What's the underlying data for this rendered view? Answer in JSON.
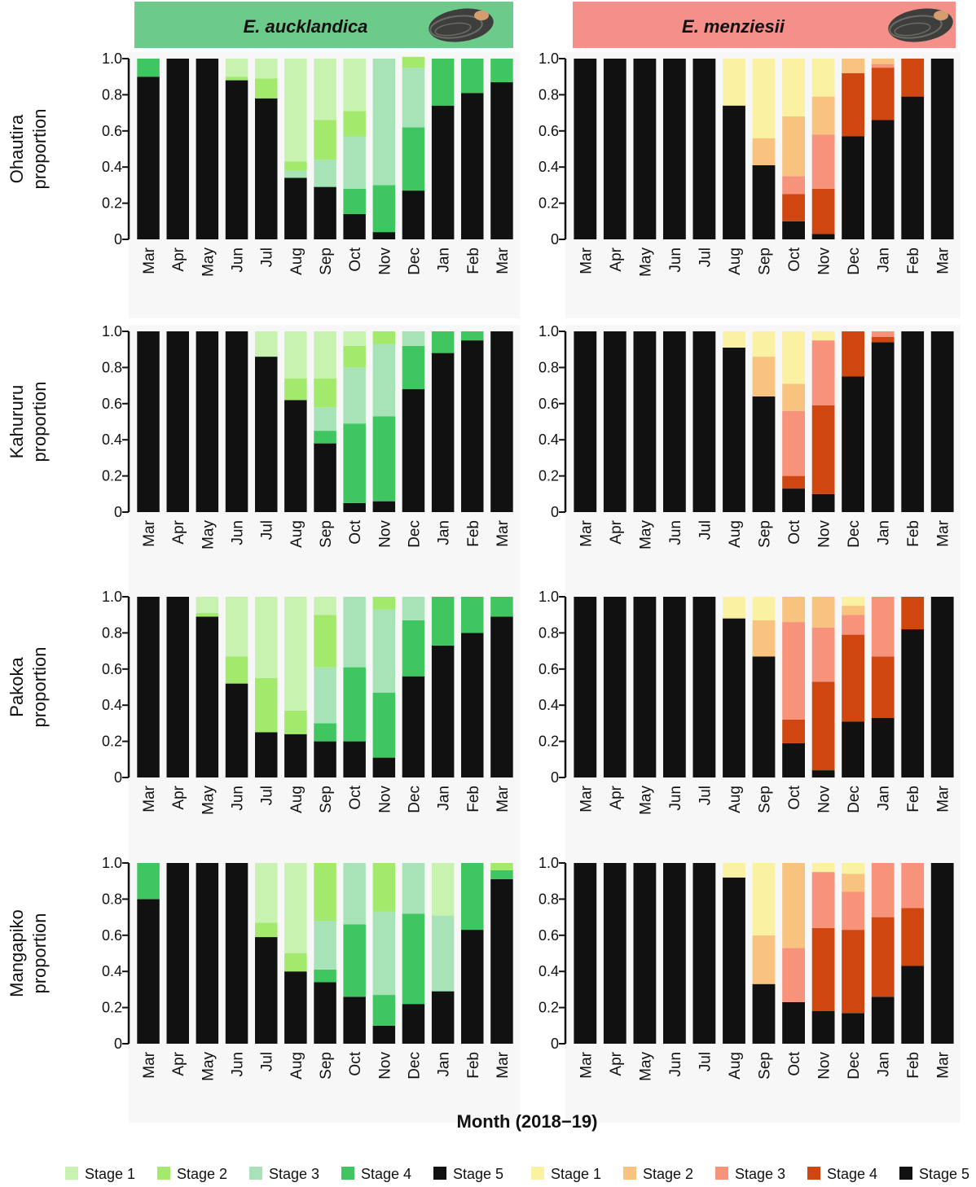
{
  "figure": {
    "species": [
      {
        "name": "E. aucklandica",
        "header_color": "#6ccb8a",
        "header_light": "#d6f1dc"
      },
      {
        "name": "E. menziesii",
        "header_color": "#f48f8a",
        "header_light": "#ffe2df"
      }
    ],
    "x_title": "Month (2018−19)"
  },
  "legend": {
    "aucklandica": [
      {
        "label": "Stage 1",
        "color": "#c8f2b0"
      },
      {
        "label": "Stage 2",
        "color": "#a3ea6c"
      },
      {
        "label": "Stage 3",
        "color": "#a8e3b8"
      },
      {
        "label": "Stage 4",
        "color": "#3fc660"
      },
      {
        "label": "Stage 5",
        "color": "#111111"
      }
    ],
    "menziesii": [
      {
        "label": "Stage 1",
        "color": "#fbf1a3"
      },
      {
        "label": "Stage 2",
        "color": "#f8c27f"
      },
      {
        "label": "Stage 3",
        "color": "#f7937a"
      },
      {
        "label": "Stage 4",
        "color": "#cf4610"
      },
      {
        "label": "Stage 5",
        "color": "#111111"
      }
    ]
  },
  "chart_data": [
    {
      "type": "bar",
      "stacked": true,
      "species": "E. aucklandica",
      "site": "Ohautira",
      "ylabel": "proportion",
      "categories": [
        "Mar",
        "Apr",
        "May",
        "Jun",
        "Jul",
        "Aug",
        "Sep",
        "Oct",
        "Nov",
        "Dec",
        "Jan",
        "Feb",
        "Mar"
      ],
      "yticks": [
        "0",
        "0.2",
        "0.4",
        "0.6",
        "0.8",
        "1.0"
      ],
      "ylim": [
        0,
        1
      ],
      "series": [
        {
          "name": "Stage 5",
          "values": [
            0.9,
            1.0,
            1.0,
            0.88,
            0.78,
            0.34,
            0.29,
            0.14,
            0.04,
            0.27,
            0.74,
            0.81,
            0.87
          ]
        },
        {
          "name": "Stage 4",
          "values": [
            0.1,
            0,
            0,
            0,
            0,
            0,
            0,
            0.14,
            0.26,
            0.35,
            0.26,
            0.19,
            0.13
          ]
        },
        {
          "name": "Stage 3",
          "values": [
            0,
            0,
            0,
            0,
            0,
            0.04,
            0.15,
            0.29,
            0.7,
            0.33,
            0,
            0,
            0
          ]
        },
        {
          "name": "Stage 2",
          "values": [
            0,
            0,
            0,
            0.02,
            0.11,
            0.05,
            0.22,
            0.14,
            0,
            0.06,
            0,
            0,
            0
          ]
        },
        {
          "name": "Stage 1",
          "values": [
            0,
            0,
            0,
            0.1,
            0.11,
            0.57,
            0.34,
            0.29,
            0,
            0,
            0,
            0,
            0
          ]
        }
      ]
    },
    {
      "type": "bar",
      "stacked": true,
      "species": "E. menziesii",
      "site": "Ohautira",
      "ylabel": "proportion",
      "categories": [
        "Mar",
        "Apr",
        "May",
        "Jun",
        "Jul",
        "Aug",
        "Sep",
        "Oct",
        "Nov",
        "Dec",
        "Jan",
        "Feb",
        "Mar"
      ],
      "yticks": [
        "0",
        "0.2",
        "0.4",
        "0.6",
        "0.8",
        "1.0"
      ],
      "ylim": [
        0,
        1
      ],
      "series": [
        {
          "name": "Stage 5",
          "values": [
            1.0,
            1.0,
            1.0,
            1.0,
            1.0,
            0.74,
            0.41,
            0.1,
            0.03,
            0.57,
            0.66,
            0.79,
            1.0
          ]
        },
        {
          "name": "Stage 4",
          "values": [
            0,
            0,
            0,
            0,
            0,
            0,
            0,
            0.15,
            0.25,
            0.35,
            0.29,
            0.21,
            0
          ]
        },
        {
          "name": "Stage 3",
          "values": [
            0,
            0,
            0,
            0,
            0,
            0,
            0,
            0.1,
            0.3,
            0,
            0.02,
            0,
            0
          ]
        },
        {
          "name": "Stage 2",
          "values": [
            0,
            0,
            0,
            0,
            0,
            0,
            0.15,
            0.33,
            0.21,
            0.08,
            0.03,
            0,
            0
          ]
        },
        {
          "name": "Stage 1",
          "values": [
            0,
            0,
            0,
            0,
            0,
            0.26,
            0.44,
            0.32,
            0.21,
            0,
            0,
            0,
            0
          ]
        }
      ]
    },
    {
      "type": "bar",
      "stacked": true,
      "species": "E. aucklandica",
      "site": "Kahururu",
      "ylabel": "proportion",
      "categories": [
        "Mar",
        "Apr",
        "May",
        "Jun",
        "Jul",
        "Aug",
        "Sep",
        "Oct",
        "Nov",
        "Dec",
        "Jan",
        "Feb",
        "Mar"
      ],
      "yticks": [
        "0",
        "0.2",
        "0.4",
        "0.6",
        "0.8",
        "1.0"
      ],
      "ylim": [
        0,
        1
      ],
      "series": [
        {
          "name": "Stage 5",
          "values": [
            1.0,
            1.0,
            1.0,
            1.0,
            0.86,
            0.62,
            0.38,
            0.05,
            0.06,
            0.68,
            0.88,
            0.95,
            1.0
          ]
        },
        {
          "name": "Stage 4",
          "values": [
            0,
            0,
            0,
            0,
            0,
            0,
            0.07,
            0.44,
            0.47,
            0.24,
            0.12,
            0.05,
            0
          ]
        },
        {
          "name": "Stage 3",
          "values": [
            0,
            0,
            0,
            0,
            0,
            0,
            0.13,
            0.31,
            0.4,
            0.08,
            0,
            0,
            0
          ]
        },
        {
          "name": "Stage 2",
          "values": [
            0,
            0,
            0,
            0,
            0,
            0.12,
            0.16,
            0.12,
            0.07,
            0,
            0,
            0,
            0
          ]
        },
        {
          "name": "Stage 1",
          "values": [
            0,
            0,
            0,
            0,
            0.14,
            0.26,
            0.26,
            0.08,
            0,
            0,
            0,
            0,
            0
          ]
        }
      ]
    },
    {
      "type": "bar",
      "stacked": true,
      "species": "E. menziesii",
      "site": "Kahururu",
      "ylabel": "proportion",
      "categories": [
        "Mar",
        "Apr",
        "May",
        "Jun",
        "Jul",
        "Aug",
        "Sep",
        "Oct",
        "Nov",
        "Dec",
        "Jan",
        "Feb",
        "Mar"
      ],
      "yticks": [
        "0",
        "0.2",
        "0.4",
        "0.6",
        "0.8",
        "1.0"
      ],
      "ylim": [
        0,
        1
      ],
      "series": [
        {
          "name": "Stage 5",
          "values": [
            1.0,
            1.0,
            1.0,
            1.0,
            1.0,
            0.91,
            0.64,
            0.13,
            0.1,
            0.75,
            0.94,
            1.0,
            1.0
          ]
        },
        {
          "name": "Stage 4",
          "values": [
            0,
            0,
            0,
            0,
            0,
            0,
            0,
            0.07,
            0.49,
            0.25,
            0.03,
            0,
            0
          ]
        },
        {
          "name": "Stage 3",
          "values": [
            0,
            0,
            0,
            0,
            0,
            0,
            0,
            0.36,
            0.36,
            0,
            0.03,
            0,
            0
          ]
        },
        {
          "name": "Stage 2",
          "values": [
            0,
            0,
            0,
            0,
            0,
            0,
            0.22,
            0.15,
            0,
            0,
            0,
            0,
            0
          ]
        },
        {
          "name": "Stage 1",
          "values": [
            0,
            0,
            0,
            0,
            0,
            0.09,
            0.14,
            0.29,
            0.05,
            0,
            0,
            0,
            0
          ]
        }
      ]
    },
    {
      "type": "bar",
      "stacked": true,
      "species": "E. aucklandica",
      "site": "Pakoka",
      "ylabel": "proportion",
      "categories": [
        "Mar",
        "Apr",
        "May",
        "Jun",
        "Jul",
        "Aug",
        "Sep",
        "Oct",
        "Nov",
        "Dec",
        "Jan",
        "Feb",
        "Mar"
      ],
      "yticks": [
        "0",
        "0.2",
        "0.4",
        "0.6",
        "0.8",
        "1.0"
      ],
      "ylim": [
        0,
        1
      ],
      "series": [
        {
          "name": "Stage 5",
          "values": [
            1.0,
            1.0,
            0.89,
            0.52,
            0.25,
            0.24,
            0.2,
            0.2,
            0.11,
            0.56,
            0.73,
            0.8,
            0.89
          ]
        },
        {
          "name": "Stage 4",
          "values": [
            0,
            0,
            0,
            0,
            0,
            0,
            0.1,
            0.41,
            0.36,
            0.31,
            0.27,
            0.2,
            0.11
          ]
        },
        {
          "name": "Stage 3",
          "values": [
            0,
            0,
            0,
            0,
            0,
            0,
            0.31,
            0.39,
            0.46,
            0.13,
            0,
            0,
            0
          ]
        },
        {
          "name": "Stage 2",
          "values": [
            0,
            0,
            0.02,
            0.15,
            0.3,
            0.13,
            0.29,
            0,
            0.07,
            0,
            0,
            0,
            0
          ]
        },
        {
          "name": "Stage 1",
          "values": [
            0,
            0,
            0.09,
            0.33,
            0.45,
            0.63,
            0.1,
            0,
            0,
            0,
            0,
            0,
            0
          ]
        }
      ]
    },
    {
      "type": "bar",
      "stacked": true,
      "species": "E. menziesii",
      "site": "Pakoka",
      "ylabel": "proportion",
      "categories": [
        "Mar",
        "Apr",
        "May",
        "Jun",
        "Jul",
        "Aug",
        "Sep",
        "Oct",
        "Nov",
        "Dec",
        "Jan",
        "Feb",
        "Mar"
      ],
      "yticks": [
        "0",
        "0.2",
        "0.4",
        "0.6",
        "0.8",
        "1.0"
      ],
      "ylim": [
        0,
        1
      ],
      "series": [
        {
          "name": "Stage 5",
          "values": [
            1.0,
            1.0,
            1.0,
            1.0,
            1.0,
            0.88,
            0.67,
            0.19,
            0.04,
            0.31,
            0.33,
            0.82,
            1.0
          ]
        },
        {
          "name": "Stage 4",
          "values": [
            0,
            0,
            0,
            0,
            0,
            0,
            0,
            0.13,
            0.49,
            0.48,
            0.34,
            0.18,
            0
          ]
        },
        {
          "name": "Stage 3",
          "values": [
            0,
            0,
            0,
            0,
            0,
            0,
            0,
            0.54,
            0.3,
            0.11,
            0.33,
            0,
            0
          ]
        },
        {
          "name": "Stage 2",
          "values": [
            0,
            0,
            0,
            0,
            0,
            0,
            0.2,
            0.14,
            0.17,
            0.05,
            0,
            0,
            0
          ]
        },
        {
          "name": "Stage 1",
          "values": [
            0,
            0,
            0,
            0,
            0,
            0.12,
            0.13,
            0,
            0,
            0.05,
            0,
            0,
            0
          ]
        }
      ]
    },
    {
      "type": "bar",
      "stacked": true,
      "species": "E. aucklandica",
      "site": "Mangapiko",
      "ylabel": "proportion",
      "categories": [
        "Mar",
        "Apr",
        "May",
        "Jun",
        "Jul",
        "Aug",
        "Sep",
        "Oct",
        "Nov",
        "Dec",
        "Jan",
        "Feb",
        "Mar"
      ],
      "yticks": [
        "0",
        "0.2",
        "0.4",
        "0.6",
        "0.8",
        "1.0"
      ],
      "ylim": [
        0,
        1
      ],
      "series": [
        {
          "name": "Stage 5",
          "values": [
            0.8,
            1.0,
            1.0,
            1.0,
            0.59,
            0.4,
            0.34,
            0.26,
            0.1,
            0.22,
            0.29,
            0.63,
            0.91
          ]
        },
        {
          "name": "Stage 4",
          "values": [
            0.2,
            0,
            0,
            0,
            0,
            0,
            0.07,
            0.4,
            0.17,
            0.5,
            0,
            0.37,
            0.05
          ]
        },
        {
          "name": "Stage 3",
          "values": [
            0,
            0,
            0,
            0,
            0,
            0,
            0.27,
            0.34,
            0.46,
            0.28,
            0.42,
            0,
            0
          ]
        },
        {
          "name": "Stage 2",
          "values": [
            0,
            0,
            0,
            0,
            0.08,
            0.1,
            0.32,
            0,
            0.27,
            0,
            0,
            0,
            0.04
          ]
        },
        {
          "name": "Stage 1",
          "values": [
            0,
            0,
            0,
            0,
            0.33,
            0.5,
            0,
            0,
            0,
            0,
            0.29,
            0,
            0
          ]
        }
      ]
    },
    {
      "type": "bar",
      "stacked": true,
      "species": "E. menziesii",
      "site": "Mangapiko",
      "ylabel": "proportion",
      "categories": [
        "Mar",
        "Apr",
        "May",
        "Jun",
        "Jul",
        "Aug",
        "Sep",
        "Oct",
        "Nov",
        "Dec",
        "Jan",
        "Feb",
        "Mar"
      ],
      "yticks": [
        "0",
        "0.2",
        "0.4",
        "0.6",
        "0.8",
        "1.0"
      ],
      "ylim": [
        0,
        1
      ],
      "series": [
        {
          "name": "Stage 5",
          "values": [
            1.0,
            1.0,
            1.0,
            1.0,
            1.0,
            0.92,
            0.33,
            0.23,
            0.18,
            0.17,
            0.26,
            0.43,
            1.0
          ]
        },
        {
          "name": "Stage 4",
          "values": [
            0,
            0,
            0,
            0,
            0,
            0,
            0,
            0,
            0.46,
            0.46,
            0.44,
            0.32,
            0
          ]
        },
        {
          "name": "Stage 3",
          "values": [
            0,
            0,
            0,
            0,
            0,
            0,
            0,
            0.3,
            0.31,
            0.21,
            0.3,
            0.25,
            0
          ]
        },
        {
          "name": "Stage 2",
          "values": [
            0,
            0,
            0,
            0,
            0,
            0,
            0.27,
            0.47,
            0,
            0.1,
            0,
            0,
            0
          ]
        },
        {
          "name": "Stage 1",
          "values": [
            0,
            0,
            0,
            0,
            0,
            0.08,
            0.4,
            0,
            0.05,
            0.06,
            0,
            0,
            0
          ]
        }
      ]
    }
  ]
}
